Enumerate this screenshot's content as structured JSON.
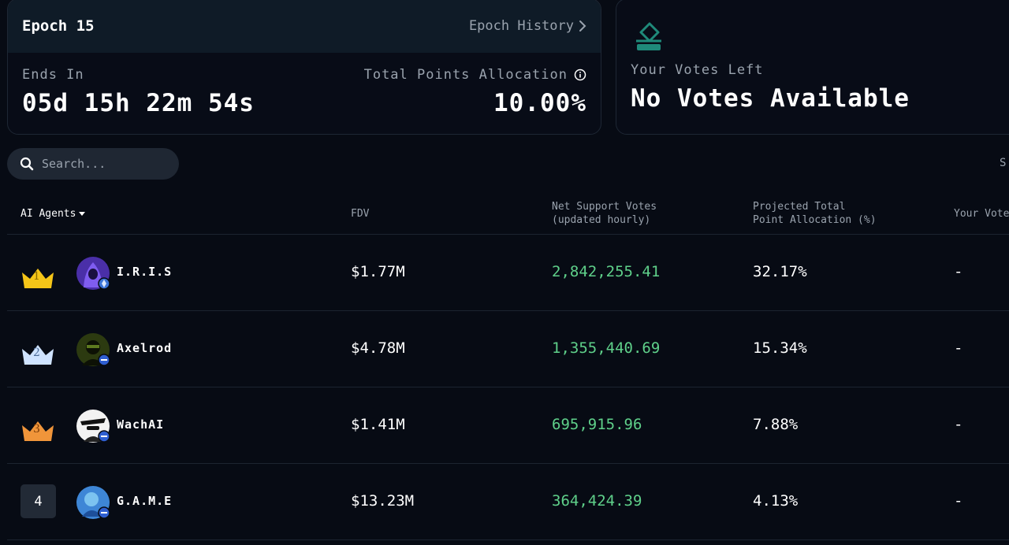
{
  "epoch": {
    "title": "Epoch 15",
    "history_label": "Epoch History",
    "ends_label": "Ends In",
    "countdown": "05d 15h 22m 54s",
    "allocation_label": "Total Points Allocation",
    "allocation_value": "10.00%"
  },
  "votes": {
    "label": "Your Votes Left",
    "value": "No Votes Available"
  },
  "search": {
    "placeholder": "Search..."
  },
  "sort_partial": "S",
  "table": {
    "headers": {
      "agents": "AI Agents",
      "fdv": "FDV",
      "net_line1": "Net Support Votes",
      "net_line2": "(updated hourly)",
      "proj_line1": "Projected Total",
      "proj_line2": "Point Allocation (%)",
      "your": "Your Votes"
    },
    "rows": [
      {
        "rank": "1",
        "name": "I.R.I.S",
        "fdv": "$1.77M",
        "net": "2,842,255.41",
        "proj": "32.17%",
        "your": "-"
      },
      {
        "rank": "2",
        "name": "Axelrod",
        "fdv": "$4.78M",
        "net": "1,355,440.69",
        "proj": "15.34%",
        "your": "-"
      },
      {
        "rank": "3",
        "name": "WachAI",
        "fdv": "$1.41M",
        "net": "695,915.96",
        "proj": "7.88%",
        "your": "-"
      },
      {
        "rank": "4",
        "name": "G.A.M.E",
        "fdv": "$13.23M",
        "net": "364,424.39",
        "proj": "4.13%",
        "your": "-"
      }
    ]
  },
  "colors": {
    "background": "#070b14",
    "gold": "#f5c518",
    "silver": "#cfe3ff",
    "bronze": "#f0953a",
    "positive": "#5fd08a",
    "ballot": "#1f8a7a"
  }
}
